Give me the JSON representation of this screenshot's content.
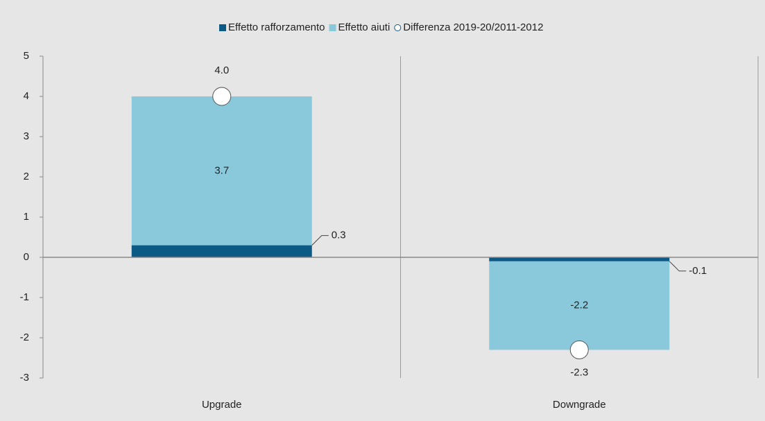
{
  "chart_data": {
    "type": "bar",
    "stacked": true,
    "categories": [
      "Upgrade",
      "Downgrade"
    ],
    "series": [
      {
        "name": "Effetto rafforzamento",
        "color": "#0b5a86",
        "values": [
          0.3,
          -0.1
        ]
      },
      {
        "name": "Effetto aiuti",
        "color": "#8ac9db",
        "values": [
          3.7,
          -2.2
        ]
      },
      {
        "name": "Differenza 2019-20/2011-2012",
        "color": "#ffffff",
        "type": "scatter",
        "values": [
          4.0,
          -2.3
        ],
        "value_labels": [
          "4.0",
          "-2.3"
        ]
      }
    ],
    "ylim": [
      -3,
      5
    ],
    "yticks": [
      -3,
      -2,
      -1,
      0,
      1,
      2,
      3,
      4,
      5
    ],
    "grid": true,
    "legend": "top"
  }
}
